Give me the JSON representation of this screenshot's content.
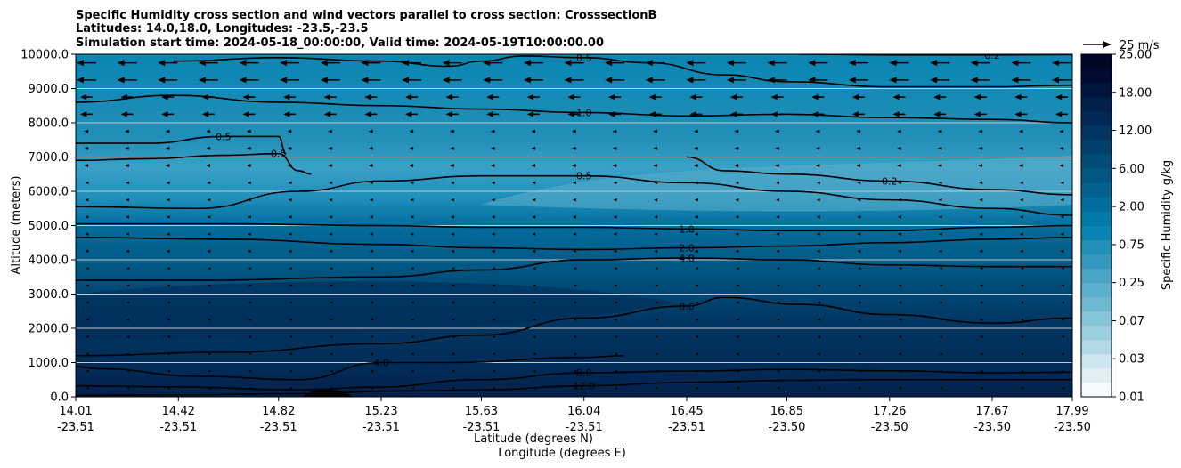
{
  "chart_data": {
    "type": "heatmap",
    "title_lines": [
      "Specific Humidity cross section and wind vectors parallel to cross section: CrosssectionB",
      "Latitudes: 14.0,18.0, Longitudes: -23.5,-23.5",
      "Simulation start time: 2024-05-18_00:00:00, Valid time: 2024-05-19T10:00:00.00"
    ],
    "ylabel": "Altitude (meters)",
    "xlabel_lat": "Latitude (degrees N)",
    "xlabel_lon": "Longitude (degrees E)",
    "ylim": [
      0,
      10000
    ],
    "yticks": [
      "0.0",
      "1000.0",
      "2000.0",
      "3000.0",
      "4000.0",
      "5000.0",
      "6000.0",
      "7000.0",
      "8000.0",
      "9000.0",
      "10000.0"
    ],
    "ytick_values": [
      0,
      1000,
      2000,
      3000,
      4000,
      5000,
      6000,
      7000,
      8000,
      9000,
      10000
    ],
    "xtick_lats": [
      "14.01",
      "14.42",
      "14.82",
      "15.23",
      "15.63",
      "16.04",
      "16.45",
      "16.85",
      "17.26",
      "17.67",
      "17.99"
    ],
    "xtick_lons": [
      "-23.51",
      "-23.51",
      "-23.51",
      "-23.51",
      "-23.51",
      "-23.51",
      "-23.51",
      "-23.50",
      "-23.50",
      "-23.50",
      "-23.50"
    ],
    "xtick_values": [
      14.01,
      14.42,
      14.82,
      15.23,
      15.63,
      16.04,
      16.45,
      16.85,
      17.26,
      17.67,
      17.99
    ],
    "xlim": [
      14.01,
      17.99
    ],
    "grid": "horizontal",
    "colorbar": {
      "label": "Specific Humidity g/kg",
      "tick_labels": [
        "0.01",
        "0.03",
        "0.07",
        "0.25",
        "0.75",
        "2.00",
        "6.00",
        "12.00",
        "18.00",
        "25.00"
      ],
      "colors": [
        "#f7fbff",
        "#e1eff5",
        "#cce5ee",
        "#b3d9e6",
        "#9ccfe0",
        "#86c4d9",
        "#6fb8d2",
        "#5cafcc",
        "#49a4c6",
        "#3599bf",
        "#2290b8",
        "#0a85b3",
        "#0379a8",
        "#036d9d",
        "#03628f",
        "#025783",
        "#024c78",
        "#02416d",
        "#013662",
        "#012b56",
        "#01204a",
        "#00163f",
        "#000b33",
        "#000727"
      ]
    },
    "quiver_key": {
      "label": "25 m/s",
      "value": 25
    },
    "contours": [
      {
        "level": 12.0,
        "label": "12.0",
        "points": [
          [
            14.01,
            40
          ],
          [
            14.4,
            60
          ],
          [
            14.9,
            90
          ],
          [
            15.3,
            170
          ],
          [
            15.63,
            200
          ],
          [
            16.04,
            320
          ],
          [
            16.45,
            420
          ],
          [
            16.85,
            480
          ],
          [
            17.26,
            500
          ],
          [
            17.67,
            500
          ],
          [
            17.99,
            500
          ]
        ]
      },
      {
        "level": 8.0,
        "label": "8.0",
        "points": [
          [
            14.01,
            320
          ],
          [
            14.4,
            290
          ],
          [
            14.9,
            200
          ],
          [
            15.2,
            280
          ],
          [
            15.63,
            500
          ],
          [
            16.04,
            700
          ],
          [
            16.45,
            750
          ],
          [
            16.85,
            800
          ],
          [
            17.26,
            760
          ],
          [
            17.67,
            700
          ],
          [
            17.99,
            720
          ]
        ]
      },
      {
        "level": 4.0,
        "label": "4.0",
        "points": [
          [
            14.01,
            880
          ],
          [
            14.1,
            820
          ],
          [
            14.5,
            600
          ],
          [
            14.9,
            500
          ],
          [
            15.23,
            1000
          ],
          [
            15.5,
            1000
          ],
          [
            16.04,
            1150
          ],
          [
            16.2,
            1200
          ]
        ]
      },
      {
        "level": 8.0,
        "label": "8.0",
        "points": [
          [
            14.01,
            1200
          ],
          [
            14.6,
            1300
          ],
          [
            15.23,
            1550
          ],
          [
            15.63,
            1800
          ],
          [
            16.04,
            2300
          ],
          [
            16.45,
            2650
          ],
          [
            16.6,
            2900
          ],
          [
            16.9,
            2700
          ],
          [
            17.26,
            2400
          ],
          [
            17.67,
            2150
          ],
          [
            17.99,
            2300
          ]
        ]
      },
      {
        "level": 4.0,
        "label": "4.0",
        "points": [
          [
            14.01,
            3400
          ],
          [
            14.5,
            3400
          ],
          [
            15.23,
            3500
          ],
          [
            15.63,
            3700
          ],
          [
            16.04,
            4000
          ],
          [
            16.45,
            4050
          ],
          [
            16.85,
            4000
          ],
          [
            17.26,
            3850
          ],
          [
            17.67,
            3800
          ],
          [
            17.99,
            3800
          ]
        ]
      },
      {
        "level": 2.0,
        "label": "2.0",
        "points": [
          [
            14.01,
            4650
          ],
          [
            14.6,
            4600
          ],
          [
            15.23,
            4450
          ],
          [
            15.63,
            4350
          ],
          [
            16.04,
            4300
          ],
          [
            16.45,
            4350
          ],
          [
            16.85,
            4400
          ],
          [
            17.26,
            4500
          ],
          [
            17.67,
            4600
          ],
          [
            17.99,
            4650
          ]
        ]
      },
      {
        "level": 1.0,
        "label": "1.0",
        "points": [
          [
            14.01,
            5050
          ],
          [
            14.6,
            5050
          ],
          [
            15.23,
            5000
          ],
          [
            15.63,
            4950
          ],
          [
            16.04,
            4950
          ],
          [
            16.45,
            4900
          ],
          [
            16.85,
            4850
          ],
          [
            17.26,
            4850
          ],
          [
            17.67,
            4950
          ],
          [
            17.99,
            5000
          ]
        ]
      },
      {
        "level": 0.5,
        "label": "0.5",
        "points": [
          [
            14.01,
            5550
          ],
          [
            14.5,
            5500
          ],
          [
            14.9,
            6000
          ],
          [
            15.23,
            6300
          ],
          [
            15.63,
            6450
          ],
          [
            16.04,
            6450
          ],
          [
            16.45,
            6250
          ],
          [
            16.85,
            6000
          ],
          [
            17.26,
            5750
          ],
          [
            17.67,
            5500
          ],
          [
            17.99,
            5300
          ]
        ]
      },
      {
        "level": 0.2,
        "label": "0.2",
        "points": [
          [
            16.45,
            7000
          ],
          [
            16.6,
            6600
          ],
          [
            16.85,
            6500
          ],
          [
            17.26,
            6300
          ],
          [
            17.67,
            6050
          ],
          [
            17.99,
            5900
          ]
        ]
      },
      {
        "level": 0.5,
        "label": "0.5",
        "points": [
          [
            14.01,
            6900
          ],
          [
            14.3,
            6950
          ],
          [
            14.6,
            7050
          ],
          [
            14.82,
            7100
          ],
          [
            14.9,
            6600
          ],
          [
            14.95,
            6500
          ]
        ]
      },
      {
        "level": 0.5,
        "label": "0.5",
        "points": [
          [
            14.01,
            7400
          ],
          [
            14.3,
            7400
          ],
          [
            14.6,
            7600
          ],
          [
            14.82,
            7600
          ],
          [
            14.85,
            7100
          ]
        ]
      },
      {
        "level": 1.0,
        "label": "1.0",
        "points": [
          [
            14.01,
            8600
          ],
          [
            14.4,
            8800
          ],
          [
            14.82,
            8600
          ],
          [
            15.23,
            8500
          ],
          [
            15.63,
            8400
          ],
          [
            16.04,
            8300
          ],
          [
            16.45,
            8200
          ],
          [
            16.85,
            8250
          ],
          [
            17.26,
            8150
          ],
          [
            17.67,
            8100
          ],
          [
            17.99,
            8000
          ]
        ]
      },
      {
        "level": 0.5,
        "label": "0.5",
        "points": [
          [
            14.4,
            9800
          ],
          [
            14.82,
            9900
          ],
          [
            15.23,
            9800
          ],
          [
            15.5,
            9650
          ],
          [
            15.63,
            9800
          ],
          [
            15.8,
            9950
          ],
          [
            16.04,
            9900
          ],
          [
            16.3,
            9750
          ],
          [
            16.6,
            9400
          ],
          [
            16.85,
            9200
          ],
          [
            17.26,
            9050
          ],
          [
            17.67,
            9050
          ],
          [
            17.99,
            9100
          ]
        ]
      },
      {
        "level": 0.2,
        "label": "0.2",
        "points": [
          [
            16.9,
            10000
          ],
          [
            17.26,
            9980
          ],
          [
            17.67,
            9980
          ],
          [
            17.99,
            9990
          ]
        ]
      }
    ]
  }
}
